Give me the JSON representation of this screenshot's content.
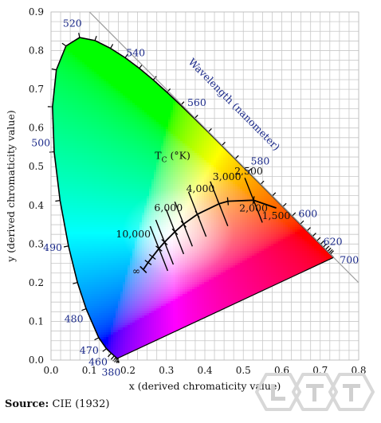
{
  "chart_data": {
    "type": "chromaticity-diagram",
    "xlabel": "x (derived chromaticity value)",
    "ylabel": "y (derived chromaticity value)",
    "xlim": [
      0.0,
      0.8
    ],
    "ylim": [
      0.0,
      0.9
    ],
    "xticks": [
      "0.0",
      "0.1",
      "0.2",
      "0.3",
      "0.4",
      "0.5",
      "0.6",
      "0.7",
      "0.8"
    ],
    "yticks": [
      "0.0",
      "0.1",
      "0.2",
      "0.3",
      "0.4",
      "0.5",
      "0.6",
      "0.7",
      "0.8",
      "0.9"
    ],
    "grid": true,
    "spectral_locus": [
      [
        0.1741,
        0.005
      ],
      [
        0.1738,
        0.0049
      ],
      [
        0.1733,
        0.0048
      ],
      [
        0.1726,
        0.0048
      ],
      [
        0.1714,
        0.0051
      ],
      [
        0.1689,
        0.0069
      ],
      [
        0.1644,
        0.0109
      ],
      [
        0.1566,
        0.0177
      ],
      [
        0.144,
        0.0297
      ],
      [
        0.1241,
        0.0578
      ],
      [
        0.0913,
        0.1327
      ],
      [
        0.0687,
        0.2007
      ],
      [
        0.0454,
        0.295
      ],
      [
        0.0235,
        0.4127
      ],
      [
        0.0082,
        0.5384
      ],
      [
        0.0039,
        0.6548
      ],
      [
        0.0139,
        0.7502
      ],
      [
        0.0389,
        0.812
      ],
      [
        0.0743,
        0.8338
      ],
      [
        0.1142,
        0.8262
      ],
      [
        0.1547,
        0.8059
      ],
      [
        0.1929,
        0.7816
      ],
      [
        0.2296,
        0.7543
      ],
      [
        0.2658,
        0.7243
      ],
      [
        0.3016,
        0.6923
      ],
      [
        0.3373,
        0.6589
      ],
      [
        0.3731,
        0.6245
      ],
      [
        0.4087,
        0.5896
      ],
      [
        0.4441,
        0.5547
      ],
      [
        0.4788,
        0.5202
      ],
      [
        0.5125,
        0.4866
      ],
      [
        0.5448,
        0.4544
      ],
      [
        0.5752,
        0.4242
      ],
      [
        0.6029,
        0.3965
      ],
      [
        0.627,
        0.3725
      ],
      [
        0.6482,
        0.3514
      ],
      [
        0.6658,
        0.334
      ],
      [
        0.6801,
        0.3197
      ],
      [
        0.6915,
        0.3083
      ],
      [
        0.7006,
        0.2993
      ],
      [
        0.7079,
        0.292
      ],
      [
        0.714,
        0.2859
      ],
      [
        0.719,
        0.2809
      ],
      [
        0.723,
        0.277
      ],
      [
        0.726,
        0.274
      ],
      [
        0.7347,
        0.2653
      ]
    ],
    "wavelength_axis_label": "Wavelength (nanometer)",
    "wavelength_labels": [
      {
        "label": "380",
        "x": 0.1741,
        "y": 0.005
      },
      {
        "label": "460",
        "x": 0.144,
        "y": 0.0297
      },
      {
        "label": "470",
        "x": 0.1241,
        "y": 0.0578
      },
      {
        "label": "480",
        "x": 0.0913,
        "y": 0.1327
      },
      {
        "label": "490",
        "x": 0.0454,
        "y": 0.295
      },
      {
        "label": "500",
        "x": 0.0082,
        "y": 0.5384
      },
      {
        "label": "520",
        "x": 0.0743,
        "y": 0.8338
      },
      {
        "label": "540",
        "x": 0.2296,
        "y": 0.7543
      },
      {
        "label": "560",
        "x": 0.3731,
        "y": 0.6245
      },
      {
        "label": "580",
        "x": 0.5125,
        "y": 0.4866
      },
      {
        "label": "600",
        "x": 0.627,
        "y": 0.3725
      },
      {
        "label": "620",
        "x": 0.6915,
        "y": 0.3083
      },
      {
        "label": "700",
        "x": 0.7347,
        "y": 0.2653
      }
    ],
    "planckian_locus_title": "T",
    "planckian_locus_title_sub": "C",
    "planckian_locus_title_unit": "(°K)",
    "planckian_locus": [
      [
        0.24,
        0.234
      ],
      [
        0.2525,
        0.2522
      ],
      [
        0.2637,
        0.2668
      ],
      [
        0.2806,
        0.2883
      ],
      [
        0.2952,
        0.3048
      ],
      [
        0.3221,
        0.3318
      ],
      [
        0.3447,
        0.3516
      ],
      [
        0.3805,
        0.3768
      ],
      [
        0.4369,
        0.4041
      ],
      [
        0.4599,
        0.4106
      ],
      [
        0.5267,
        0.4133
      ],
      [
        0.5857,
        0.3931
      ]
    ],
    "isotherms": [
      {
        "x": 0.2806,
        "y": 0.2883
      },
      {
        "x": 0.2952,
        "y": 0.3048
      },
      {
        "x": 0.3221,
        "y": 0.3318
      },
      {
        "x": 0.3447,
        "y": 0.3516
      },
      {
        "x": 0.3805,
        "y": 0.3768
      },
      {
        "x": 0.4369,
        "y": 0.4041
      },
      {
        "x": 0.5267,
        "y": 0.4133
      }
    ],
    "temperature_labels": [
      {
        "label": "10,000",
        "x": 0.2806,
        "y": 0.2883
      },
      {
        "label": "6,000",
        "x": 0.3221,
        "y": 0.3318
      },
      {
        "label": "4,000",
        "x": 0.3805,
        "y": 0.3768
      },
      {
        "label": "3,000",
        "x": 0.4369,
        "y": 0.4041
      },
      {
        "label": "2,500",
        "x": 0.4769,
        "y": 0.4137
      },
      {
        "label": "2,000",
        "x": 0.5267,
        "y": 0.4133
      },
      {
        "label": "1,500",
        "x": 0.5857,
        "y": 0.3931
      },
      {
        "label": "∞",
        "x": 0.24,
        "y": 0.234
      }
    ]
  },
  "source": {
    "label": "Source:",
    "text": " CIE (1932)"
  }
}
